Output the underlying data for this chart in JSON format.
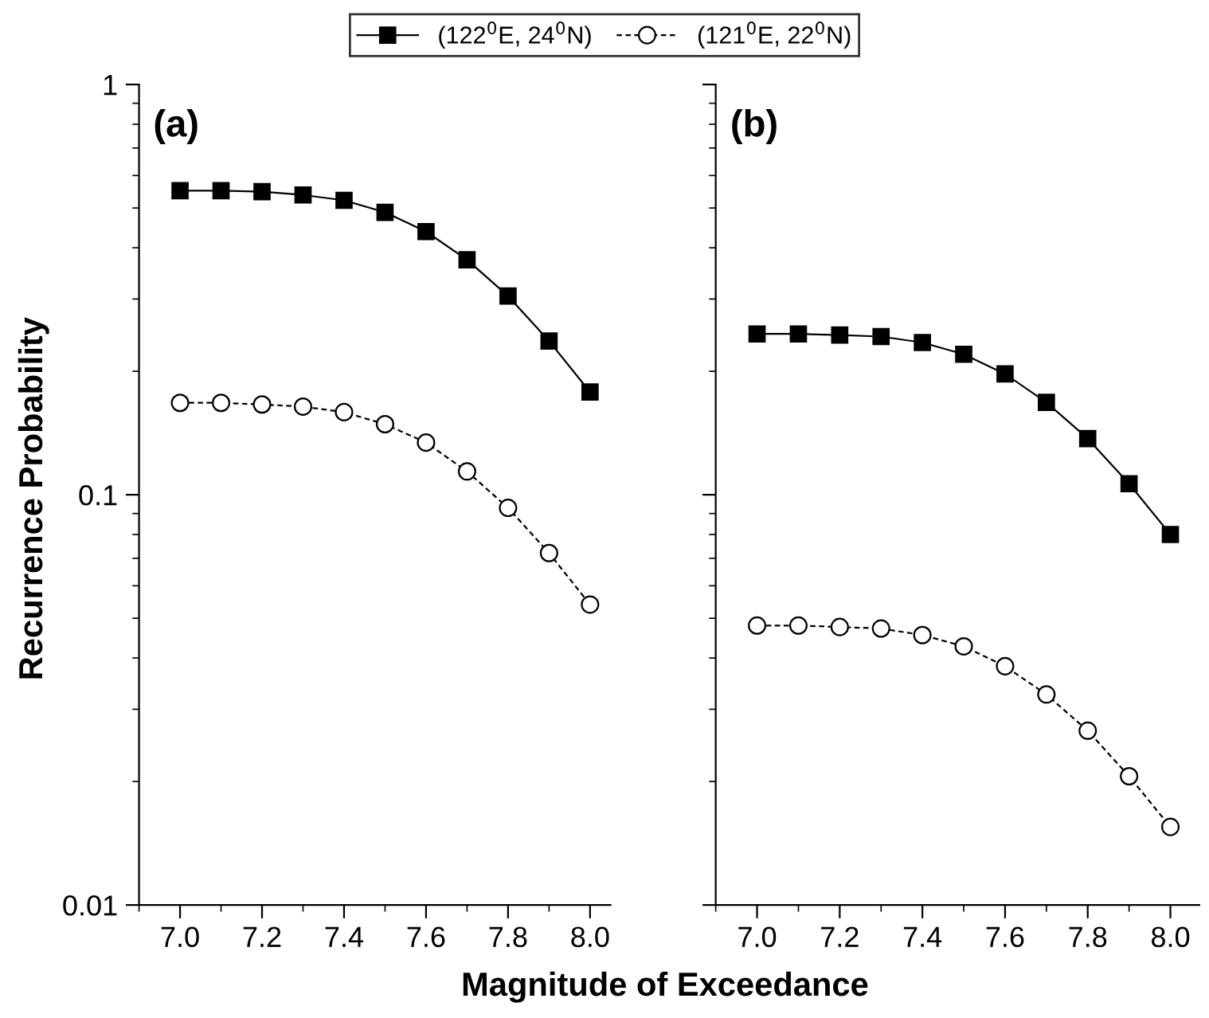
{
  "chart_data": [
    {
      "type": "line",
      "xlabel": "Magnitude of Exceedance",
      "ylabel": "Recurrence Probability",
      "annotations": [
        "(a)"
      ],
      "x": [
        7.0,
        7.1,
        7.2,
        7.3,
        7.4,
        7.5,
        7.6,
        7.7,
        7.8,
        7.9,
        8.0
      ],
      "series": [
        {
          "name": "(122$^{0}$E, 24$^{0}$N)",
          "color": "#000000",
          "marker": "square",
          "line_style": "solid",
          "values": [
            0.551,
            0.551,
            0.548,
            0.538,
            0.522,
            0.488,
            0.438,
            0.374,
            0.305,
            0.237,
            0.178
          ]
        },
        {
          "name": "(121$^{0}$E, 22$^{0}$N)",
          "color": "#000000",
          "marker": "circle",
          "line_style": "dashed",
          "values": [
            0.1675,
            0.1675,
            0.166,
            0.164,
            0.159,
            0.1486,
            0.134,
            0.114,
            0.0929,
            0.0721,
            0.054
          ]
        }
      ],
      "log": "y",
      "xlim": [
        6.9,
        8.05
      ],
      "ylim": [
        0.01,
        1
      ],
      "xticks": [
        {
          "value": 7.0,
          "label": "7.0"
        },
        {
          "value": 7.2,
          "label": "7.2"
        },
        {
          "value": 7.4,
          "label": "7.4"
        },
        {
          "value": 7.6,
          "label": "7.6"
        },
        {
          "value": 7.8,
          "label": "7.8"
        },
        {
          "value": 8.0,
          "label": "8.0"
        }
      ],
      "yticks": [
        0.01,
        0.1,
        1
      ],
      "legend": "top",
      "grid": false
    },
    {
      "type": "line",
      "annotations": [
        "(b)"
      ],
      "x": [
        7.0,
        7.1,
        7.2,
        7.3,
        7.4,
        7.5,
        7.6,
        7.7,
        7.8,
        7.9,
        8.0
      ],
      "series": [
        {
          "color": "#000000",
          "marker": "square",
          "line_style": "solid",
          "values": [
            0.2466,
            0.2466,
            0.245,
            0.243,
            0.235,
            0.22,
            0.197,
            0.168,
            0.137,
            0.1064,
            0.08
          ]
        },
        {
          "color": "#000000",
          "marker": "circle",
          "line_style": "dashed",
          "values": [
            0.048,
            0.048,
            0.0476,
            0.0472,
            0.0455,
            0.0427,
            0.0382,
            0.0326,
            0.0266,
            0.0206,
            0.0155
          ]
        }
      ],
      "log": "y",
      "xlim": [
        6.9,
        8.07
      ],
      "ylim": [
        0.01,
        1
      ],
      "xticks": [
        {
          "value": 7.0,
          "label": "7.0"
        },
        {
          "value": 7.2,
          "label": "7.2"
        },
        {
          "value": 7.4,
          "label": "7.4"
        },
        {
          "value": 7.6,
          "label": "7.6"
        },
        {
          "value": 7.8,
          "label": "7.8"
        },
        {
          "value": 8.0,
          "label": "8.0"
        }
      ],
      "yticks": [
        0.01,
        0.1,
        1
      ],
      "tick_labels": "x",
      "grid": false
    }
  ]
}
